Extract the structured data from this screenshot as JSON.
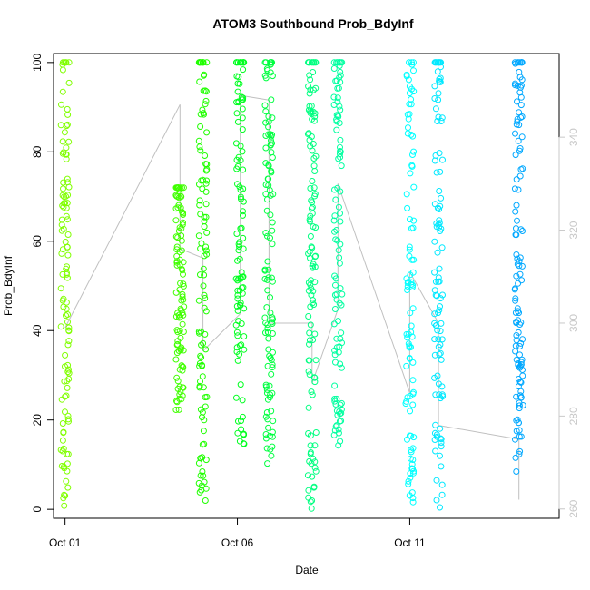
{
  "chart_data": {
    "type": "scatter",
    "title": "ATOM3 Southbound Prob_BdyInf",
    "xlabel": "Date",
    "ylabel": "Prob_BdyInf",
    "x_unit": "date",
    "xlim": [
      "2000-09-30T16:00",
      "2000-10-15T08:00"
    ],
    "ylim": [
      -2,
      102
    ],
    "x_ticks": [
      {
        "label": "Oct 01",
        "value": "2000-10-01"
      },
      {
        "label": "Oct 06",
        "value": "2000-10-06"
      },
      {
        "label": "Oct 11",
        "value": "2000-10-11"
      }
    ],
    "y_ticks": [
      0,
      20,
      40,
      60,
      80,
      100
    ],
    "y2_ticks": [
      260,
      280,
      300,
      320,
      340
    ],
    "y2lim": [
      258,
      358
    ],
    "grid": false,
    "series": [
      {
        "marker": "open-circle",
        "color_scale": "date (green to blue)",
        "clusters": [
          {
            "x": "2000-10-01T00:00",
            "color": "#80ff00",
            "y_min": 0,
            "y_max": 100
          },
          {
            "x": "2000-10-04T08:00",
            "color": "#40ff00",
            "y_min": 22,
            "y_max": 72
          },
          {
            "x": "2000-10-05T00:00",
            "color": "#20ff00",
            "y_min": 0,
            "y_max": 100
          },
          {
            "x": "2000-10-06T02:00",
            "color": "#00ff20",
            "y_min": 14,
            "y_max": 100
          },
          {
            "x": "2000-10-06T22:00",
            "color": "#00ff40",
            "y_min": 10,
            "y_max": 100
          },
          {
            "x": "2000-10-08T04:00",
            "color": "#00ff80",
            "y_min": 0,
            "y_max": 100
          },
          {
            "x": "2000-10-08T22:00",
            "color": "#00ffa0",
            "y_min": 14,
            "y_max": 100
          },
          {
            "x": "2000-10-11T00:00",
            "color": "#00ffff",
            "y_min": 0,
            "y_max": 100
          },
          {
            "x": "2000-10-11T20:00",
            "color": "#00e8ff",
            "y_min": 0,
            "y_max": 100
          },
          {
            "x": "2000-10-14T04:00",
            "color": "#00a8ff",
            "y_min": 8,
            "y_max": 100
          }
        ]
      },
      {
        "axis": "right",
        "line_color": "#c0c0c0",
        "points": [
          {
            "x": "2000-10-01T00:00",
            "y": 299
          },
          {
            "x": "2000-10-04T08:00",
            "y": 347
          },
          {
            "x": "2000-10-04T08:00",
            "y": 316
          },
          {
            "x": "2000-10-05T00:00",
            "y": 314
          },
          {
            "x": "2000-10-05T00:00",
            "y": 294
          },
          {
            "x": "2000-10-06T02:00",
            "y": 302
          },
          {
            "x": "2000-10-06T02:00",
            "y": 349
          },
          {
            "x": "2000-10-06T22:00",
            "y": 348
          },
          {
            "x": "2000-10-06T22:00",
            "y": 310
          },
          {
            "x": "2000-10-06T22:00",
            "y": 300
          },
          {
            "x": "2000-10-08T04:00",
            "y": 300
          },
          {
            "x": "2000-10-08T04:00",
            "y": 287
          },
          {
            "x": "2000-10-08T22:00",
            "y": 303
          },
          {
            "x": "2000-10-08T22:00",
            "y": 330
          },
          {
            "x": "2000-10-11T00:00",
            "y": 285
          },
          {
            "x": "2000-10-11T00:00",
            "y": 311
          },
          {
            "x": "2000-10-11T20:00",
            "y": 300
          },
          {
            "x": "2000-10-11T20:00",
            "y": 278
          },
          {
            "x": "2000-10-14T04:00",
            "y": 275
          },
          {
            "x": "2000-10-14T04:00",
            "y": 262
          }
        ]
      }
    ]
  }
}
